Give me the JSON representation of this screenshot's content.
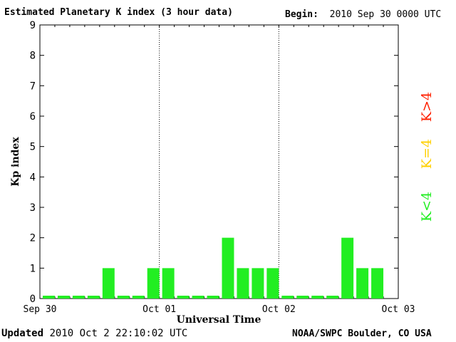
{
  "header": {
    "title": "Estimated Planetary K index (3 hour data)",
    "begin_label": "Begin:",
    "begin_value": "2010 Sep 30 0000 UTC"
  },
  "footer": {
    "updated_label": "Updated",
    "updated_value": "2010 Oct  2 22:10:02 UTC",
    "source": "NOAA/SWPC Boulder, CO USA"
  },
  "legend": [
    {
      "label": "K>4",
      "color": "#ff2000"
    },
    {
      "label": "K=4",
      "color": "#ffd000"
    },
    {
      "label": "K<4",
      "color": "#22ee22"
    }
  ],
  "chart_data": {
    "type": "bar",
    "title": "Estimated Planetary K index (3 hour data)",
    "xlabel": "Universal Time",
    "ylabel": "Kp index",
    "ylim": [
      0,
      9
    ],
    "yticks": [
      0,
      1,
      2,
      3,
      4,
      5,
      6,
      7,
      8,
      9
    ],
    "xlim_bins": 24,
    "xtick_labels": [
      "Sep 30",
      "Oct 01",
      "Oct 02",
      "Oct 03"
    ],
    "day_dividers": [
      "Oct 01",
      "Oct 02"
    ],
    "bar_color": "#22ee22",
    "values": [
      0,
      0,
      0,
      0,
      1,
      0,
      0,
      1,
      1,
      0,
      0,
      0,
      2,
      1,
      1,
      1,
      0,
      0,
      0,
      0,
      2,
      1,
      1
    ]
  }
}
